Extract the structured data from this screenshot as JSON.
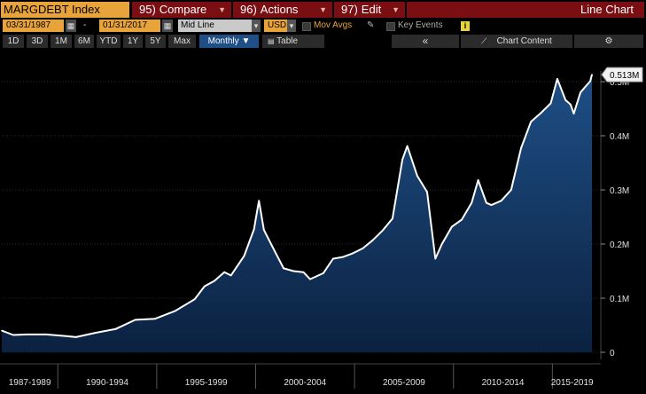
{
  "toolbar": {
    "ticker": "MARGDEBT Index",
    "compare_num": "95)",
    "compare_label": "Compare",
    "actions_num": "96)",
    "actions_label": "Actions",
    "edit_num": "97)",
    "edit_label": "Edit",
    "view_title": "Line Chart"
  },
  "controls": {
    "start_date": "03/31/1987",
    "date_sep": "-",
    "end_date": "01/31/2017",
    "line_type": "Mid Line",
    "currency": "USD",
    "mov_avgs": "Mov Avgs",
    "key_events": "Key Events",
    "info": "i"
  },
  "periods": [
    "1D",
    "3D",
    "1M",
    "6M",
    "YTD",
    "1Y",
    "5Y",
    "Max"
  ],
  "frequency": "Monthly",
  "table_label": "Table",
  "collapse_icon": "«",
  "chart_content_label": "Chart Content",
  "colors": {
    "accent": "#e8a33a",
    "red": "#7a0e12",
    "line": "#ffffff",
    "fill_top": "#1e4f86",
    "fill_bottom": "#0b2140"
  },
  "chart_data": {
    "type": "area",
    "title": "",
    "xlabel": "",
    "ylabel": "",
    "x_tick_labels": [
      "1987-1989",
      "1990-1994",
      "1995-1999",
      "2000-2004",
      "2005-2009",
      "2010-2014",
      "2015-2019"
    ],
    "y_tick_labels": [
      "0",
      "0.1M",
      "0.2M",
      "0.3M",
      "0.4M",
      "0.5M"
    ],
    "ylim": [
      0,
      0.55
    ],
    "xlim": [
      "1987-03",
      "2017-01"
    ],
    "last_value_label": "0.513M",
    "series": [
      {
        "x": [
          "1987-03",
          "1987-10",
          "1988-06",
          "1989-06",
          "1990-06",
          "1990-12",
          "1991-12",
          "1992-12",
          "1993-12",
          "1994-12",
          "1995-12",
          "1996-12",
          "1997-06",
          "1997-12",
          "1998-06",
          "1998-10",
          "1999-06",
          "1999-12",
          "2000-03",
          "2000-06",
          "2000-12",
          "2001-06",
          "2001-12",
          "2002-06",
          "2002-10",
          "2003-06",
          "2003-12",
          "2004-06",
          "2004-12",
          "2005-06",
          "2005-12",
          "2006-06",
          "2006-12",
          "2007-06",
          "2007-09",
          "2008-03",
          "2008-09",
          "2009-02",
          "2009-06",
          "2009-12",
          "2010-06",
          "2010-12",
          "2011-04",
          "2011-09",
          "2011-12",
          "2012-06",
          "2012-12",
          "2013-06",
          "2013-12",
          "2014-06",
          "2014-12",
          "2015-04",
          "2015-09",
          "2015-12",
          "2016-02",
          "2016-06",
          "2016-12",
          "2017-01"
        ],
        "y": [
          0.04,
          0.032,
          0.033,
          0.033,
          0.03,
          0.028,
          0.036,
          0.043,
          0.06,
          0.062,
          0.076,
          0.098,
          0.122,
          0.132,
          0.148,
          0.142,
          0.178,
          0.227,
          0.28,
          0.226,
          0.19,
          0.155,
          0.15,
          0.148,
          0.135,
          0.146,
          0.173,
          0.176,
          0.183,
          0.192,
          0.207,
          0.225,
          0.247,
          0.356,
          0.381,
          0.326,
          0.296,
          0.173,
          0.2,
          0.232,
          0.245,
          0.276,
          0.318,
          0.276,
          0.272,
          0.28,
          0.3,
          0.377,
          0.426,
          0.442,
          0.46,
          0.505,
          0.466,
          0.458,
          0.441,
          0.48,
          0.501,
          0.513
        ]
      }
    ]
  }
}
